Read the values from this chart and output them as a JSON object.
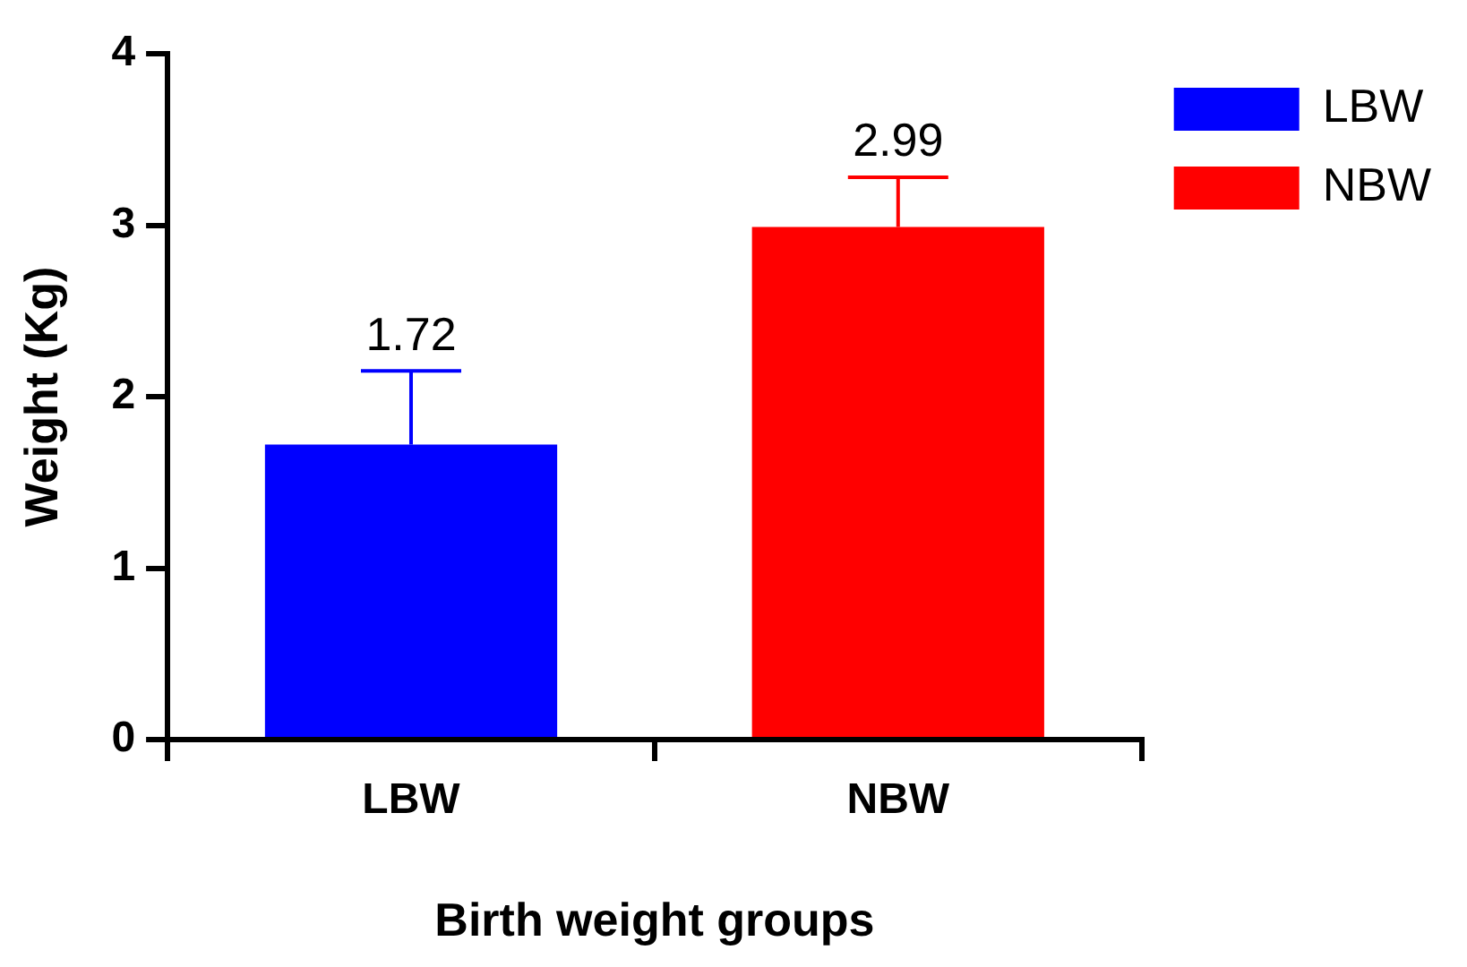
{
  "chart_data": {
    "type": "bar",
    "xlabel": "Birth weight groups",
    "ylabel": "Weight (Kg)",
    "categories": [
      "LBW",
      "NBW"
    ],
    "series": [
      {
        "name": "LBW",
        "color": "#0000ff",
        "values": [
          1.72,
          null
        ],
        "errors": [
          [
            1.72,
            2.15
          ],
          null
        ]
      },
      {
        "name": "NBW",
        "color": "#ff0000",
        "values": [
          null,
          2.99
        ],
        "errors": [
          null,
          [
            2.99,
            3.28
          ]
        ]
      }
    ],
    "ylim": [
      0,
      4
    ],
    "yticks": [
      0,
      1,
      2,
      3,
      4
    ],
    "grid": false,
    "legend": "top right",
    "data_labels": true
  }
}
